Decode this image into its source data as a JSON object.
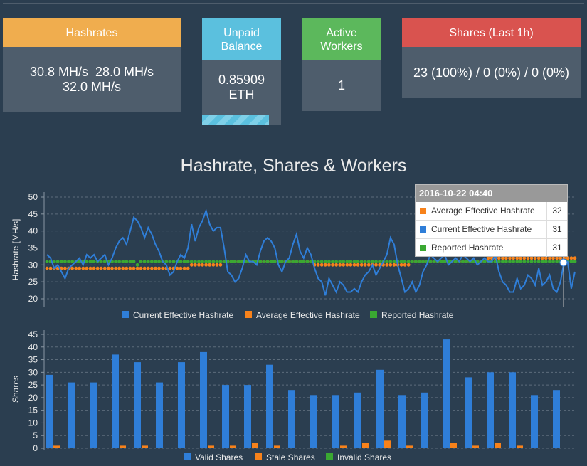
{
  "stats": {
    "hashrates": {
      "title": "Hashrates",
      "line1": "30.8 MH/s  28.0 MH/s",
      "line2": "32.0 MH/s",
      "color": "#f0ad4e"
    },
    "unpaid": {
      "title1": "Unpaid",
      "title2": "Balance",
      "value1": "0.85909",
      "value2": "ETH",
      "color": "#5bc0de",
      "progress": 0.85
    },
    "workers": {
      "title1": "Active",
      "title2": "Workers",
      "value": "1",
      "color": "#5cb85c"
    },
    "shares": {
      "title": "Shares (Last 1h)",
      "value": "23 (100%) / 0 (0%) / 0 (0%)",
      "color": "#d9534f"
    }
  },
  "chart_title": "Hashrate, Shares & Workers",
  "tooltip": {
    "header": "2016-10-22 04:40",
    "rows": [
      {
        "label": "Average Effective Hashrate",
        "value": "32",
        "color": "#f7821b"
      },
      {
        "label": "Current Effective Hashrate",
        "value": "31",
        "color": "#2f7ed8"
      },
      {
        "label": "Reported Hashrate",
        "value": "31",
        "color": "#3aa832"
      }
    ]
  },
  "chart_data": [
    {
      "type": "line",
      "ylabel": "Hashrate [MH/s]",
      "ylim": [
        18,
        52
      ],
      "yticks": [
        "50",
        "45",
        "40",
        "35",
        "30",
        "25",
        "20"
      ],
      "grid": true,
      "legend_position": "bottom",
      "series": [
        {
          "name": "Current Effective Hashrate",
          "color": "#2f7ed8",
          "values": [
            33,
            32,
            29,
            30,
            28,
            26,
            29,
            30,
            31,
            32,
            30,
            33,
            32,
            33,
            31,
            32,
            33,
            30,
            32,
            35,
            37,
            38,
            36,
            40,
            44,
            43,
            41,
            38,
            41,
            39,
            36,
            34,
            31,
            30,
            27,
            28,
            31,
            33,
            32,
            35,
            42,
            37,
            41,
            43,
            46,
            42,
            40,
            41,
            41,
            35,
            28,
            27,
            25,
            26,
            29,
            33,
            31,
            31,
            30,
            34,
            37,
            38,
            37,
            35,
            30,
            28,
            31,
            32,
            36,
            39,
            34,
            32,
            35,
            33,
            29,
            26,
            25,
            21,
            26,
            24,
            22,
            25,
            24,
            22,
            22,
            23,
            22,
            25,
            27,
            28,
            30,
            27,
            29,
            31,
            33,
            38,
            36,
            30,
            26,
            22,
            23,
            25,
            22,
            24,
            28,
            30,
            33,
            32,
            31,
            32,
            33,
            30,
            31,
            32,
            31,
            33,
            32,
            31,
            32,
            30,
            31,
            32,
            31,
            31,
            33,
            28,
            25,
            24,
            22,
            22,
            26,
            23,
            24,
            27,
            26,
            24,
            29,
            24,
            25,
            27,
            23,
            22,
            25,
            31,
            31,
            23,
            28
          ]
        },
        {
          "name": "Average Effective Hashrate",
          "color": "#f7821b",
          "values": [
            29,
            29,
            29,
            29,
            29,
            29,
            29,
            29,
            29,
            29,
            29,
            29,
            29,
            29,
            29,
            29,
            29,
            29,
            29,
            29,
            29,
            29,
            29,
            29,
            29,
            29,
            29,
            29,
            29,
            29,
            29,
            29,
            29,
            29,
            29,
            29,
            29,
            29,
            29,
            29,
            30,
            30,
            30,
            30,
            30,
            30,
            30,
            30,
            30,
            31,
            31,
            31,
            31,
            31,
            31,
            31,
            31,
            31,
            31,
            31,
            31,
            31,
            31,
            31,
            31,
            31,
            31,
            31,
            31,
            31,
            31,
            31,
            31,
            31,
            30,
            30,
            30,
            30,
            30,
            30,
            30,
            30,
            30,
            30,
            30,
            30,
            30,
            30,
            30,
            30,
            30,
            30,
            30,
            30,
            30,
            30,
            30,
            30,
            30,
            30,
            30,
            31,
            31,
            31,
            31,
            31,
            31,
            31,
            31,
            31,
            31,
            31,
            31,
            31,
            31,
            31,
            31,
            31,
            31,
            31,
            31,
            31,
            32,
            32,
            32,
            32,
            32,
            32,
            32,
            32,
            32,
            32,
            32,
            32,
            32,
            32,
            32,
            32,
            32,
            32,
            32,
            32,
            32,
            32,
            32,
            32,
            32
          ]
        },
        {
          "name": "Reported Hashrate",
          "color": "#3aa832",
          "values": [
            31,
            31,
            31,
            31,
            31,
            31,
            31,
            31,
            31,
            31,
            31,
            31,
            31,
            31,
            31,
            31,
            31,
            31,
            31,
            31,
            31,
            31,
            31,
            31,
            31,
            30,
            31,
            31,
            31,
            31,
            31,
            31,
            31,
            31,
            31,
            31,
            31,
            31,
            31,
            31,
            31,
            31,
            31,
            31,
            31,
            31,
            31,
            31,
            31,
            31,
            31,
            31,
            31,
            31,
            31,
            31,
            31,
            31,
            31,
            31,
            31,
            31,
            31,
            31,
            31,
            31,
            31,
            31,
            31,
            31,
            31,
            31,
            31,
            31,
            31,
            31,
            31,
            31,
            31,
            31,
            31,
            31,
            31,
            31,
            31,
            31,
            31,
            31,
            31,
            31,
            31,
            31,
            31,
            31,
            31,
            31,
            31,
            31,
            31,
            31,
            31,
            31,
            31,
            31,
            31,
            31,
            31,
            31,
            31,
            31,
            31,
            31,
            31,
            31,
            31,
            31,
            31,
            31,
            31,
            31,
            31,
            31,
            31,
            31,
            31,
            31,
            31,
            31,
            31,
            31,
            31,
            31,
            31,
            31,
            31,
            31,
            31,
            31,
            31,
            31,
            31,
            31,
            31,
            31,
            31,
            31,
            31
          ]
        }
      ]
    },
    {
      "type": "bar",
      "ylabel": "Shares",
      "ylim": [
        0,
        45
      ],
      "yticks": [
        "45",
        "40",
        "35",
        "30",
        "25",
        "20",
        "15",
        "10",
        "5",
        "0"
      ],
      "grid": true,
      "legend_position": "bottom",
      "series": [
        {
          "name": "Valid Shares",
          "color": "#2f7ed8",
          "values": [
            29,
            26,
            26,
            37,
            34,
            26,
            34,
            38,
            25,
            25,
            33,
            23,
            21,
            21,
            22,
            31,
            21,
            22,
            43,
            28,
            30,
            30,
            21,
            23
          ]
        },
        {
          "name": "Stale Shares",
          "color": "#f7821b",
          "values": [
            1,
            0,
            0,
            1,
            1,
            0,
            0,
            1,
            1,
            2,
            1,
            0,
            0,
            1,
            2,
            3,
            1,
            0,
            2,
            1,
            2,
            1,
            0,
            0
          ]
        },
        {
          "name": "Invalid Shares",
          "color": "#3aa832",
          "values": [
            0,
            0,
            0,
            0,
            0,
            0,
            0,
            0,
            0,
            0,
            0,
            0,
            0,
            0,
            0,
            0,
            0,
            0,
            0,
            0,
            0,
            0,
            0,
            0
          ]
        }
      ]
    }
  ]
}
